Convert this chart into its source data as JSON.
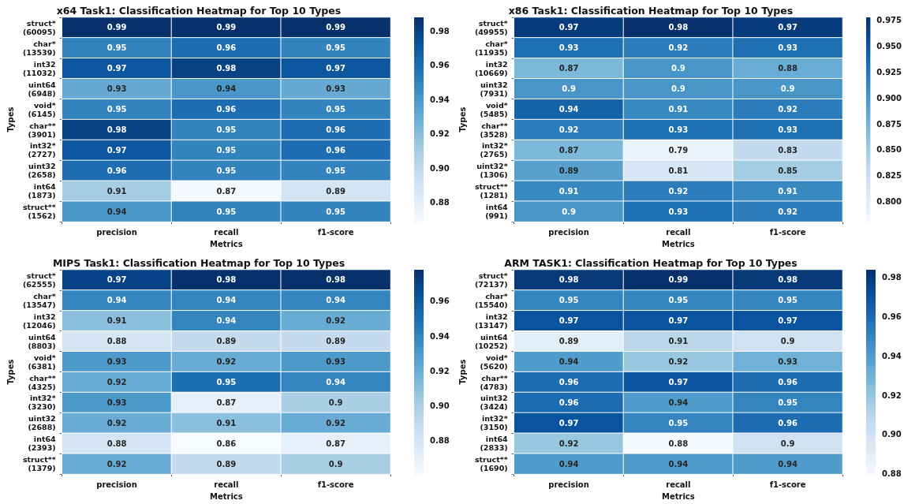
{
  "chart_data": [
    {
      "type": "heatmap",
      "title": "x64 Task1: Classification Heatmap for Top 10 Types",
      "xlabel": "Metrics",
      "ylabel": "Types",
      "categories": [
        "precision",
        "recall",
        "f1-score"
      ],
      "y_categories": [
        "struct*\n(60095)",
        "char*\n(13539)",
        "int32\n(11032)",
        "uint64\n(6948)",
        "void*\n(6145)",
        "char**\n(3901)",
        "int32*\n(2727)",
        "uint32\n(2658)",
        "int64\n(1873)",
        "struct**\n(1562)"
      ],
      "cells": [
        [
          0.99,
          0.99,
          0.99
        ],
        [
          0.95,
          0.96,
          0.95
        ],
        [
          0.97,
          0.98,
          0.97
        ],
        [
          0.93,
          0.94,
          0.93
        ],
        [
          0.95,
          0.96,
          0.95
        ],
        [
          0.98,
          0.95,
          0.96
        ],
        [
          0.97,
          0.95,
          0.96
        ],
        [
          0.96,
          0.95,
          0.95
        ],
        [
          0.91,
          0.87,
          0.89
        ],
        [
          0.94,
          0.95,
          0.95
        ]
      ],
      "clim": [
        0.868,
        0.988
      ],
      "cticks": [
        {
          "value": 0.88,
          "label": "0.88"
        },
        {
          "value": 0.9,
          "label": "0.90"
        },
        {
          "value": 0.92,
          "label": "0.92"
        },
        {
          "value": 0.94,
          "label": "0.94"
        },
        {
          "value": 0.96,
          "label": "0.96"
        },
        {
          "value": 0.98,
          "label": "0.98"
        }
      ],
      "data_labels": true
    },
    {
      "type": "heatmap",
      "title": "x86 Task1: Classification Heatmap for Top 10 Types",
      "xlabel": "Metrics",
      "ylabel": "Types",
      "categories": [
        "precision",
        "recall",
        "f1-score"
      ],
      "y_categories": [
        "struct*\n(49955)",
        "char*\n(11935)",
        "int32\n(10669)",
        "uint32\n(7931)",
        "void*\n(5485)",
        "char**\n(3528)",
        "int32*\n(2765)",
        "uint32*\n(1306)",
        "struct**\n(1281)",
        "int64\n(991)"
      ],
      "cells": [
        [
          0.97,
          0.98,
          0.97
        ],
        [
          0.93,
          0.92,
          0.93
        ],
        [
          0.87,
          0.9,
          0.88
        ],
        [
          0.9,
          0.9,
          0.9
        ],
        [
          0.94,
          0.91,
          0.92
        ],
        [
          0.92,
          0.93,
          0.93
        ],
        [
          0.87,
          0.79,
          0.83
        ],
        [
          0.89,
          0.81,
          0.85
        ],
        [
          0.91,
          0.92,
          0.91
        ],
        [
          0.9,
          0.93,
          0.92
        ]
      ],
      "clim": [
        0.779,
        0.978
      ],
      "cticks": [
        {
          "value": 0.8,
          "label": "0.800"
        },
        {
          "value": 0.825,
          "label": "0.825"
        },
        {
          "value": 0.85,
          "label": "0.850"
        },
        {
          "value": 0.875,
          "label": "0.875"
        },
        {
          "value": 0.9,
          "label": "0.900"
        },
        {
          "value": 0.925,
          "label": "0.925"
        },
        {
          "value": 0.95,
          "label": "0.950"
        },
        {
          "value": 0.975,
          "label": "0.975"
        }
      ],
      "data_labels": true
    },
    {
      "type": "heatmap",
      "title": "MIPS Task1: Classification Heatmap for Top 10 Types",
      "xlabel": "Metrics",
      "ylabel": "Types",
      "categories": [
        "precision",
        "recall",
        "f1-score"
      ],
      "y_categories": [
        "struct*\n(62555)",
        "char*\n(13547)",
        "int32\n(12046)",
        "uint64\n(8803)",
        "void*\n(6381)",
        "char**\n(4325)",
        "int32*\n(3230)",
        "uint32\n(2688)",
        "int64\n(2393)",
        "struct**\n(1379)"
      ],
      "cells": [
        [
          0.97,
          0.98,
          0.98
        ],
        [
          0.94,
          0.94,
          0.94
        ],
        [
          0.91,
          0.94,
          0.92
        ],
        [
          0.88,
          0.89,
          0.89
        ],
        [
          0.93,
          0.92,
          0.93
        ],
        [
          0.92,
          0.95,
          0.94
        ],
        [
          0.93,
          0.87,
          0.9
        ],
        [
          0.92,
          0.91,
          0.92
        ],
        [
          0.88,
          0.86,
          0.87
        ],
        [
          0.92,
          0.89,
          0.9
        ]
      ],
      "clim": [
        0.86,
        0.978
      ],
      "cticks": [
        {
          "value": 0.88,
          "label": "0.88"
        },
        {
          "value": 0.9,
          "label": "0.90"
        },
        {
          "value": 0.92,
          "label": "0.92"
        },
        {
          "value": 0.94,
          "label": "0.94"
        },
        {
          "value": 0.96,
          "label": "0.96"
        }
      ],
      "data_labels": true
    },
    {
      "type": "heatmap",
      "title": "ARM TASK1: Classification Heatmap for Top 10 Types",
      "xlabel": "Metrics",
      "ylabel": "Types",
      "categories": [
        "precision",
        "recall",
        "f1-score"
      ],
      "y_categories": [
        "struct*\n(72137)",
        "char*\n(15540)",
        "int32\n(13147)",
        "uint64\n(10252)",
        "void*\n(5620)",
        "char**\n(4783)",
        "uint32\n(3424)",
        "int32*\n(3150)",
        "int64\n(2833)",
        "struct**\n(1690)"
      ],
      "cells": [
        [
          0.98,
          0.99,
          0.98
        ],
        [
          0.95,
          0.95,
          0.95
        ],
        [
          0.97,
          0.97,
          0.97
        ],
        [
          0.89,
          0.91,
          0.9
        ],
        [
          0.94,
          0.92,
          0.93
        ],
        [
          0.96,
          0.97,
          0.96
        ],
        [
          0.96,
          0.94,
          0.95
        ],
        [
          0.97,
          0.95,
          0.96
        ],
        [
          0.92,
          0.88,
          0.9
        ],
        [
          0.94,
          0.94,
          0.94
        ]
      ],
      "clim": [
        0.879,
        0.984
      ],
      "cticks": [
        {
          "value": 0.88,
          "label": "0.88"
        },
        {
          "value": 0.9,
          "label": "0.90"
        },
        {
          "value": 0.92,
          "label": "0.92"
        },
        {
          "value": 0.94,
          "label": "0.94"
        },
        {
          "value": 0.96,
          "label": "0.96"
        },
        {
          "value": 0.98,
          "label": "0.98"
        }
      ],
      "data_labels": true
    }
  ]
}
